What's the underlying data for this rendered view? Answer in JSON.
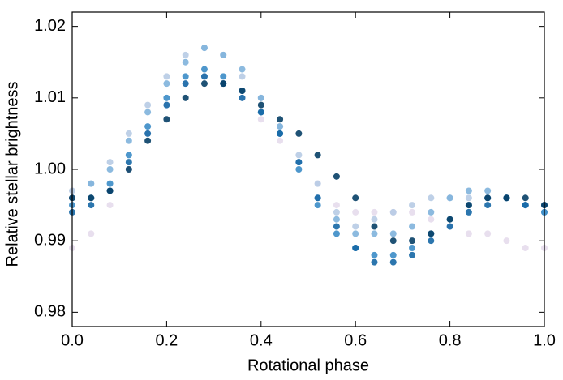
{
  "chart_data": {
    "type": "scatter",
    "x_label": "Rotational phase",
    "y_label": "Relative stellar brightness",
    "x": [
      0,
      0.04,
      0.08,
      0.12,
      0.16,
      0.2,
      0.24,
      0.28,
      0.32,
      0.36,
      0.4,
      0.44,
      0.48,
      0.52,
      0.56,
      0.6,
      0.64,
      0.68,
      0.72,
      0.76,
      0.8,
      0.84,
      0.88,
      0.92,
      0.96,
      1.0
    ],
    "series": [
      {
        "color": "#e6dcec",
        "values": [
          0.989,
          0.991,
          0.995,
          1.0,
          1.005,
          1.009,
          1.012,
          1.013,
          1.012,
          1.01,
          1.007,
          1.004,
          1.001,
          0.998,
          0.995,
          0.994,
          0.994,
          0.994,
          0.994,
          0.993,
          0.992,
          0.991,
          0.991,
          0.99,
          0.989,
          0.989
        ]
      },
      {
        "color": "#b7cbe4",
        "values": [
          0.997,
          0.998,
          1.001,
          1.005,
          1.009,
          1.013,
          1.016,
          1.017,
          1.016,
          1.013,
          1.01,
          1.006,
          1.002,
          0.998,
          0.994,
          0.992,
          0.993,
          0.994,
          0.995,
          0.996,
          0.996,
          0.996,
          0.996,
          0.996,
          0.995,
          0.994
        ]
      },
      {
        "color": "#7fb3dc",
        "values": [
          0.996,
          0.998,
          1.0,
          1.004,
          1.008,
          1.012,
          1.015,
          1.017,
          1.016,
          1.014,
          1.01,
          1.006,
          1.001,
          0.996,
          0.993,
          0.991,
          0.991,
          0.991,
          0.992,
          0.994,
          0.996,
          0.997,
          0.997,
          0.996,
          0.995,
          0.994
        ]
      },
      {
        "color": "#3b8cc6",
        "values": [
          0.995,
          0.996,
          0.998,
          1.002,
          1.006,
          1.01,
          1.013,
          1.014,
          1.013,
          1.011,
          1.008,
          1.005,
          1.0,
          0.995,
          0.991,
          0.989,
          0.988,
          0.988,
          0.989,
          0.991,
          0.993,
          0.995,
          0.996,
          0.996,
          0.995,
          0.994
        ]
      },
      {
        "color": "#1567a5",
        "values": [
          0.994,
          0.995,
          0.997,
          1.001,
          1.005,
          1.009,
          1.012,
          1.013,
          1.012,
          1.01,
          1.008,
          1.005,
          1.001,
          0.996,
          0.992,
          0.989,
          0.987,
          0.987,
          0.988,
          0.99,
          0.992,
          0.994,
          0.995,
          0.996,
          0.995,
          0.995
        ]
      },
      {
        "color": "#073f66",
        "values": [
          0.996,
          0.996,
          0.997,
          1.0,
          1.004,
          1.007,
          1.01,
          1.012,
          1.012,
          1.011,
          1.009,
          1.007,
          1.005,
          1.002,
          0.999,
          0.996,
          0.992,
          0.99,
          0.99,
          0.991,
          0.993,
          0.995,
          0.996,
          0.996,
          0.996,
          0.995
        ]
      }
    ],
    "xlim": [
      0,
      1
    ],
    "ylim": [
      0.978,
      1.022
    ],
    "xticks": [
      {
        "value": 0,
        "label": "0.0"
      },
      {
        "value": 0.2,
        "label": "0.2"
      },
      {
        "value": 0.4,
        "label": "0.4"
      },
      {
        "value": 0.6,
        "label": "0.6"
      },
      {
        "value": 0.8,
        "label": "0.8"
      },
      {
        "value": 1,
        "label": "1.0"
      }
    ],
    "yticks": [
      0.98,
      0.99,
      {
        "value": 1,
        "label": "1.00"
      },
      1.01,
      1.02
    ]
  }
}
